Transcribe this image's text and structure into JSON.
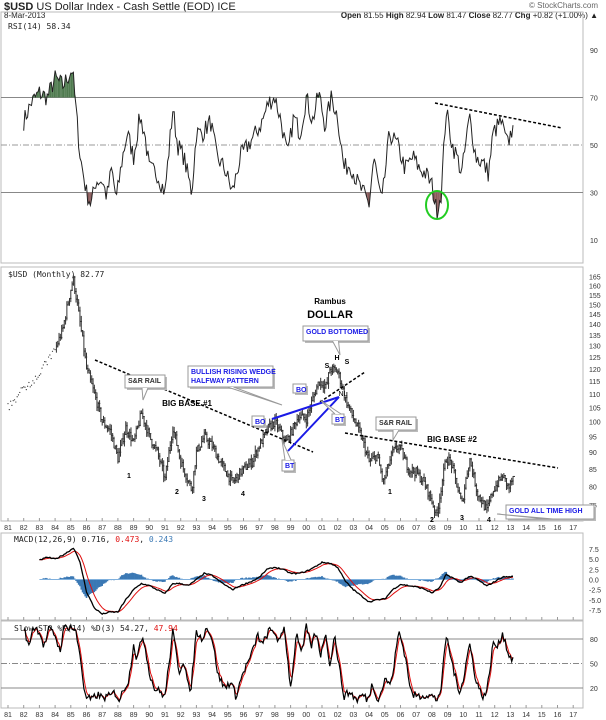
{
  "header": {
    "symbol": "$USD",
    "name": "US Dollar Index - Cash Settle (EOD) ICE",
    "date": "8-Mar-2013",
    "copyright": "© StockCharts.com",
    "quote": {
      "open_label": "Open",
      "open": "81.55",
      "high_label": "High",
      "high": "82.94",
      "low_label": "Low",
      "low": "81.47",
      "close_label": "Close",
      "close": "82.77",
      "chg_label": "Chg",
      "chg": "+0.82 (+1.00%)"
    }
  },
  "colors": {
    "price": "#333333",
    "macd": "#000000",
    "signal": "#e01010",
    "histogram": "#3a78b4",
    "rsi_overbought": "#4e7a4e",
    "rsi_oversold": "#8a5a5a",
    "annotation": "#1a1ae6",
    "circle": "#22cc22"
  },
  "chart_data": [
    {
      "type": "line",
      "panel": "rsi",
      "legend": "RSI(14) 58.34",
      "yticks": [
        90,
        70,
        50,
        30,
        10
      ],
      "ylim": [
        0,
        100
      ],
      "reference_lines": [
        70,
        50,
        30
      ],
      "x": [
        1982.0,
        1982.5,
        1983,
        1983.5,
        1984,
        1984.5,
        1985.1,
        1985.4,
        1985.6,
        1986,
        1986.3,
        1986.6,
        1987,
        1987.3,
        1987.6,
        1987.9,
        1988.3,
        1988.6,
        1989,
        1989.4,
        1989.7,
        1990,
        1990.5,
        1991,
        1991.5,
        1991.8,
        1992.2,
        1992.7,
        1993,
        1993.4,
        1993.9,
        1994.3,
        1994.8,
        1995.3,
        1995.8,
        1996.3,
        1996.8,
        1997.2,
        1997.6,
        1998,
        1998.4,
        1998.8,
        1999.2,
        1999.6,
        2000,
        2000.4,
        2000.8,
        2001.2,
        2001.6,
        2002.0,
        2002.4,
        2002.8,
        2003.2,
        2003.6,
        2004.0,
        2004.3,
        2004.8,
        2005.3,
        2005.8,
        2006.3,
        2006.8,
        2007.2,
        2007.6,
        2008.0,
        2008.3,
        2008.6,
        2008.9,
        2009.3,
        2009.6,
        2009.9,
        2010.4,
        2010.8,
        2011.3,
        2011.6,
        2011.9,
        2012.4,
        2012.8,
        2013.2
      ],
      "y": [
        60,
        68,
        72,
        70,
        78,
        75,
        82,
        60,
        45,
        30,
        25,
        35,
        35,
        28,
        40,
        27,
        45,
        55,
        45,
        62,
        55,
        40,
        38,
        30,
        65,
        50,
        45,
        30,
        55,
        55,
        60,
        45,
        40,
        30,
        45,
        50,
        55,
        60,
        68,
        70,
        60,
        45,
        62,
        55,
        70,
        60,
        72,
        58,
        70,
        62,
        40,
        42,
        35,
        30,
        25,
        45,
        25,
        55,
        50,
        40,
        45,
        40,
        38,
        33,
        22,
        30,
        65,
        50,
        45,
        38,
        62,
        45,
        42,
        38,
        55,
        60,
        50,
        58.34
      ]
    },
    {
      "type": "bar",
      "style": "ohlc",
      "panel": "price",
      "legend": "$USD (Monthly) 82.77",
      "yscale": "log",
      "yticks": [
        165,
        160,
        155,
        150,
        145,
        140,
        135,
        130,
        125,
        120,
        115,
        110,
        105,
        100,
        95,
        90,
        85,
        80,
        75
      ],
      "x": [
        1981.0,
        1982.0,
        1983.0,
        1984.0,
        1984.5,
        1985.15,
        1985.5,
        1986.0,
        1986.5,
        1987.0,
        1987.5,
        1988.0,
        1988.5,
        1989.0,
        1989.5,
        1990.0,
        1990.5,
        1991.0,
        1991.5,
        1992.0,
        1992.7,
        1993.0,
        1993.5,
        1994.0,
        1994.5,
        1995.3,
        1995.8,
        1996.5,
        1997.0,
        1997.6,
        1998.0,
        1998.7,
        1999.0,
        1999.5,
        2000.0,
        2000.8,
        2001.3,
        2001.5,
        2002.0,
        2002.5,
        2003.0,
        2003.5,
        2004.0,
        2004.5,
        2004.9,
        2005.5,
        2005.9,
        2006.5,
        2007.0,
        2007.5,
        2008.0,
        2008.3,
        2008.9,
        2009.2,
        2009.9,
        2010.4,
        2010.9,
        2011.3,
        2011.5,
        2011.9,
        2012.5,
        2012.9,
        2013.2
      ],
      "close": [
        105,
        112,
        118,
        128,
        138,
        164,
        145,
        120,
        110,
        100,
        97,
        88,
        98,
        93,
        103,
        95,
        90,
        82,
        98,
        87,
        79,
        90,
        95,
        92,
        87,
        81,
        84,
        87,
        92,
        98,
        100,
        93,
        96,
        102,
        101,
        115,
        113,
        120,
        119,
        108,
        101,
        95,
        87,
        89,
        81,
        90,
        92,
        85,
        84,
        81,
        76,
        72,
        88,
        87,
        75,
        88,
        78,
        75,
        73.5,
        79,
        83,
        79.5,
        82.77
      ],
      "annotations": {
        "title": "Rambus",
        "subtitle": "DOLLAR",
        "sr_rail_1": "S&R RAIL",
        "big_base_1": "BIG BASE #1",
        "wedge": [
          "BULLISH RISING WEDGE",
          "HALFWAY PATTERN"
        ],
        "bo": "BO",
        "bt": "BT",
        "gold_bottomed": "GOLD BOTTOMED",
        "h": "H",
        "s": "S",
        "nl": "NL",
        "sr_rail_2": "S&R RAIL",
        "big_base_2": "BIG BASE #2",
        "gold_ath": "GOLD ALL TIME HIGH",
        "base1_points": [
          "1",
          "2",
          "3",
          "4"
        ],
        "base2_points": [
          "1",
          "2",
          "3",
          "4"
        ]
      }
    },
    {
      "type": "line",
      "panel": "macd",
      "legend": {
        "label": "MACD(12,26,9)",
        "macd": "0.716",
        "signal": "0.473",
        "histogram": "0.243"
      },
      "yticks": [
        "7.5",
        "5.0",
        "2.5",
        "0.0",
        "-2.5",
        "-5.0",
        "-7.5"
      ],
      "x": [
        1983,
        1983.5,
        1984,
        1984.5,
        1985.2,
        1985.6,
        1986,
        1986.5,
        1987,
        1987.5,
        1988,
        1988.5,
        1989,
        1989.5,
        1990,
        1990.5,
        1991,
        1991.5,
        1992,
        1992.5,
        1993,
        1993.5,
        1994,
        1994.5,
        1995.3,
        1995.8,
        1996.5,
        1997,
        1997.5,
        1998,
        1998.5,
        1999,
        1999.5,
        2000,
        2000.5,
        2001,
        2001.5,
        2002,
        2002.5,
        2003,
        2003.5,
        2004,
        2004.5,
        2005,
        2005.5,
        2006,
        2006.5,
        2007,
        2007.5,
        2008,
        2008.5,
        2008.9,
        2009.3,
        2009.8,
        2010.4,
        2010.9,
        2011.5,
        2012,
        2012.5,
        2013.2
      ],
      "macd": [
        4.7,
        5.5,
        5,
        6,
        7.8,
        4,
        -3,
        -7,
        -8.5,
        -8,
        -8,
        -5,
        -2.5,
        -1,
        -1.5,
        -2.5,
        -3.5,
        -1,
        -1,
        -1.5,
        0,
        1.5,
        1,
        -0.5,
        -2.5,
        -1.5,
        -0.5,
        0.5,
        2.5,
        3,
        2.5,
        1.5,
        1.5,
        2,
        3,
        4.2,
        4,
        3,
        -0.5,
        -2.5,
        -4,
        -5.5,
        -5,
        -4.8,
        -2.5,
        -1.2,
        -1.5,
        -1.8,
        -2.3,
        -3.3,
        -2,
        1.2,
        0.5,
        -0.8,
        0.8,
        0,
        -1.6,
        -0.5,
        0.6,
        0.716
      ]
    },
    {
      "type": "line",
      "panel": "stochastic",
      "legend": {
        "label": "Slow STO %K(14) %D(3)",
        "k": "54.27",
        "d": "47.94"
      },
      "yticks": [
        80,
        50,
        20
      ],
      "reference_lines": [
        80,
        50,
        20
      ],
      "x": [
        1982.0,
        1982.3,
        1982.6,
        1983,
        1983.3,
        1983.6,
        1984,
        1984.3,
        1984.6,
        1985,
        1985.3,
        1985.6,
        1985.9,
        1986.3,
        1986.7,
        1987,
        1987.5,
        1987.8,
        1988.1,
        1988.4,
        1988.7,
        1989.0,
        1989.2,
        1989.6,
        1990,
        1990.3,
        1990.7,
        1991,
        1991.5,
        1991.9,
        1992.2,
        1992.6,
        1993,
        1993.3,
        1993.7,
        1994,
        1994.4,
        1994.8,
        1995.2,
        1995.5,
        1996,
        1996.5,
        1996.9,
        1997.2,
        1997.6,
        1998,
        1998.3,
        1998.6,
        1999,
        1999.4,
        1999.7,
        2000,
        2000.3,
        2000.6,
        2000.9,
        2001.2,
        2001.5,
        2001.8,
        2002.1,
        2002.4,
        2002.8,
        2003.2,
        2003.6,
        2003.9,
        2004.2,
        2004.6,
        2005,
        2005.4,
        2005.9,
        2006.3,
        2006.7,
        2007.2,
        2007.6,
        2008,
        2008.3,
        2008.6,
        2008.9,
        2009.3,
        2009.7,
        2010,
        2010.4,
        2010.8,
        2011.2,
        2011.5,
        2011.9,
        2012.2,
        2012.5,
        2012.9,
        2013.2
      ],
      "k": [
        95,
        70,
        95,
        90,
        70,
        92,
        85,
        65,
        95,
        95,
        90,
        60,
        10,
        5,
        12,
        8,
        10,
        15,
        5,
        20,
        30,
        75,
        55,
        85,
        40,
        20,
        15,
        10,
        88,
        40,
        55,
        10,
        90,
        80,
        95,
        80,
        35,
        20,
        28,
        10,
        40,
        60,
        85,
        72,
        90,
        88,
        75,
        95,
        20,
        90,
        60,
        95,
        70,
        88,
        60,
        88,
        50,
        85,
        45,
        10,
        15,
        5,
        12,
        5,
        25,
        5,
        30,
        25,
        90,
        60,
        12,
        10,
        12,
        10,
        5,
        20,
        85,
        50,
        15,
        30,
        75,
        30,
        10,
        15,
        75,
        70,
        88,
        60,
        54.27
      ]
    }
  ],
  "xaxis": {
    "labels": [
      "81",
      "82",
      "83",
      "84",
      "85",
      "86",
      "87",
      "88",
      "89",
      "90",
      "91",
      "92",
      "93",
      "94",
      "95",
      "96",
      "97",
      "98",
      "99",
      "00",
      "01",
      "02",
      "03",
      "04",
      "05",
      "06",
      "07",
      "08",
      "09",
      "10",
      "11",
      "12",
      "13",
      "14",
      "15",
      "16",
      "17"
    ]
  }
}
